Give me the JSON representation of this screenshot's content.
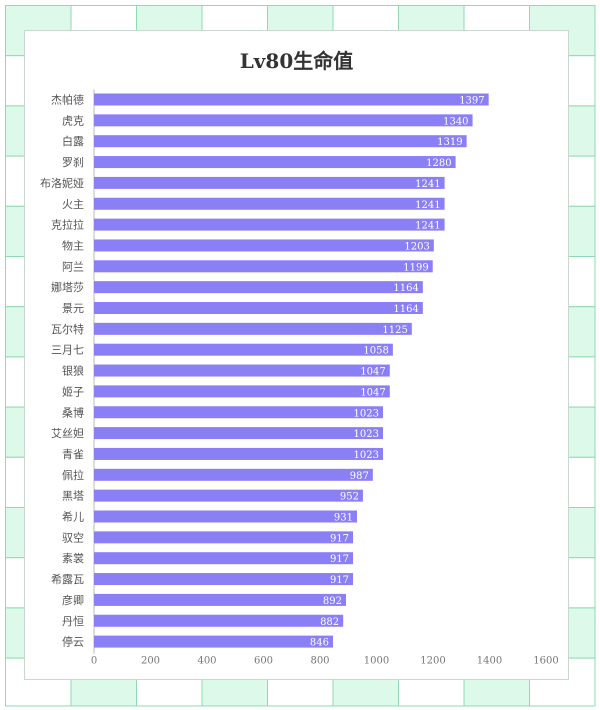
{
  "colors": {
    "bar": "#8b7ff5",
    "bar_label": "#ffffff",
    "grid_line": "#8fd9b3",
    "grid_fill": "#dcf9ea",
    "axis": "#bbbbbb",
    "text": "#555555"
  },
  "chart_data": {
    "type": "bar",
    "orientation": "horizontal",
    "title": "Lv80生命值",
    "xlabel": "",
    "ylabel": "",
    "xlim": [
      0,
      1600
    ],
    "ticks": [
      0,
      200,
      400,
      600,
      800,
      1000,
      1200,
      1400,
      1600
    ],
    "grid": false,
    "categories": [
      "杰帕德",
      "虎克",
      "白露",
      "罗刹",
      "布洛妮娅",
      "火主",
      "克拉拉",
      "物主",
      "阿兰",
      "娜塔莎",
      "景元",
      "瓦尔特",
      "三月七",
      "银狼",
      "姬子",
      "桑博",
      "艾丝妲",
      "青雀",
      "佩拉",
      "黑塔",
      "希儿",
      "驭空",
      "素裳",
      "希露瓦",
      "彦卿",
      "丹恒",
      "停云"
    ],
    "values": [
      1397,
      1340,
      1319,
      1280,
      1241,
      1241,
      1241,
      1203,
      1199,
      1164,
      1164,
      1125,
      1058,
      1047,
      1047,
      1023,
      1023,
      1023,
      987,
      952,
      931,
      917,
      917,
      917,
      892,
      882,
      846
    ]
  }
}
